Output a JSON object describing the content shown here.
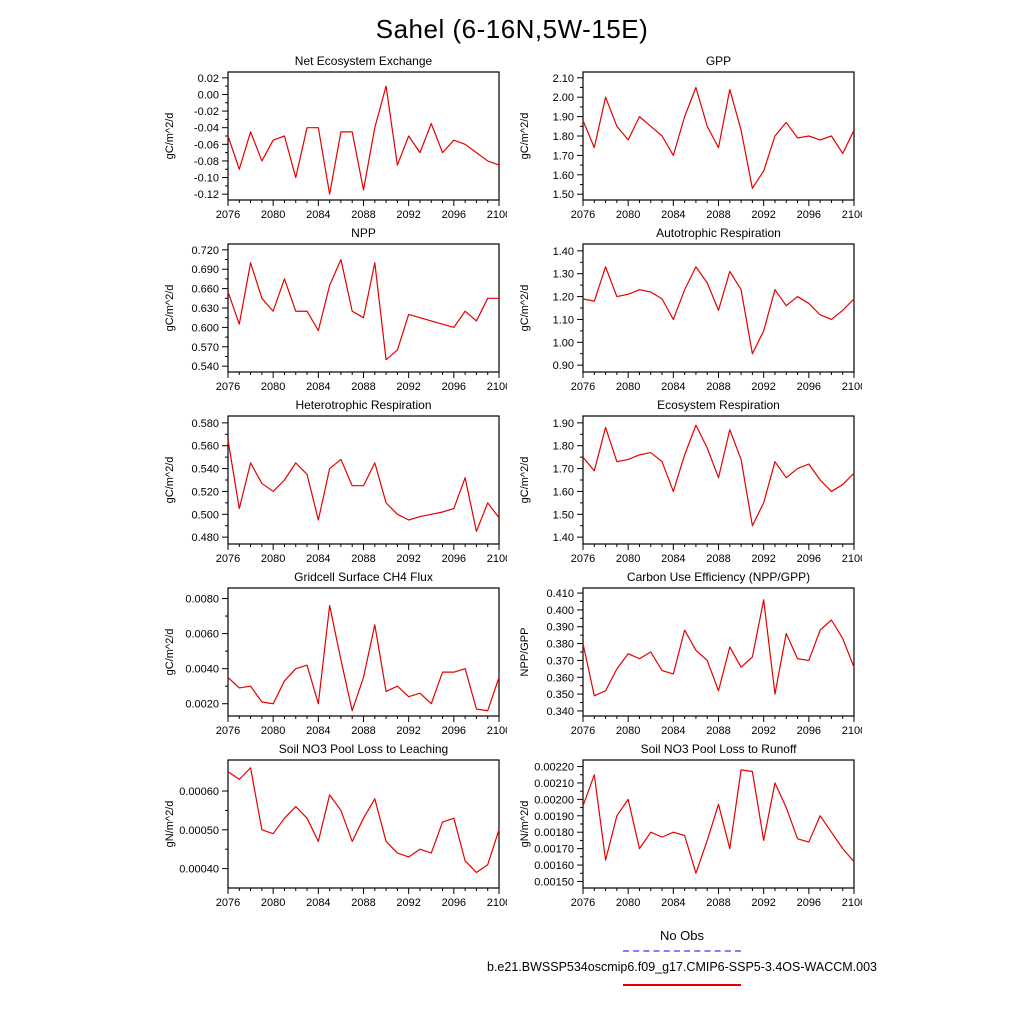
{
  "page": {
    "title": "Sahel (6-16N,5W-15E)"
  },
  "footer": {
    "no_obs_label": "No Obs",
    "case_label": "b.e21.BWSSP534oscmip6.f09_g17.CMIP6-SSP5-3.4OS-WACCM.003"
  },
  "colors": {
    "series_line": "#e50000",
    "obs_dashed_line": "#8080ff",
    "axis": "#000000"
  },
  "chart_data": [
    {
      "type": "line",
      "title": "Net Ecosystem Exchange",
      "ylabel": "gC/m^2/d",
      "x_range": [
        2076,
        2100
      ],
      "x_step": 1,
      "xticks": [
        2076,
        2080,
        2084,
        2088,
        2092,
        2096,
        2100
      ],
      "yticks": [
        -0.12,
        -0.1,
        -0.08,
        -0.06,
        -0.04,
        -0.02,
        0.0,
        0.02
      ],
      "ytick_decimals": 2,
      "ylim": [
        -0.127,
        0.027
      ],
      "values": [
        -0.05,
        -0.09,
        -0.045,
        -0.08,
        -0.055,
        -0.05,
        -0.1,
        -0.04,
        -0.04,
        -0.12,
        -0.045,
        -0.045,
        -0.115,
        -0.04,
        0.01,
        -0.085,
        -0.05,
        -0.07,
        -0.035,
        -0.07,
        -0.055,
        -0.06,
        -0.07,
        -0.08,
        -0.085
      ]
    },
    {
      "type": "line",
      "title": "GPP",
      "ylabel": "gC/m^2/d",
      "x_range": [
        2076,
        2100
      ],
      "x_step": 1,
      "xticks": [
        2076,
        2080,
        2084,
        2088,
        2092,
        2096,
        2100
      ],
      "yticks": [
        1.5,
        1.6,
        1.7,
        1.8,
        1.9,
        2.0,
        2.1
      ],
      "ytick_decimals": 2,
      "ylim": [
        1.47,
        2.13
      ],
      "values": [
        1.88,
        1.74,
        2.0,
        1.85,
        1.78,
        1.9,
        1.85,
        1.8,
        1.7,
        1.9,
        2.05,
        1.85,
        1.74,
        2.04,
        1.83,
        1.53,
        1.62,
        1.8,
        1.87,
        1.79,
        1.8,
        1.78,
        1.8,
        1.71,
        1.83
      ]
    },
    {
      "type": "line",
      "title": "NPP",
      "ylabel": "gC/m^2/d",
      "x_range": [
        2076,
        2100
      ],
      "x_step": 1,
      "xticks": [
        2076,
        2080,
        2084,
        2088,
        2092,
        2096,
        2100
      ],
      "yticks": [
        0.54,
        0.57,
        0.6,
        0.63,
        0.66,
        0.69,
        0.72
      ],
      "ytick_decimals": 3,
      "ylim": [
        0.531,
        0.729
      ],
      "values": [
        0.655,
        0.605,
        0.7,
        0.645,
        0.625,
        0.675,
        0.625,
        0.625,
        0.595,
        0.665,
        0.705,
        0.625,
        0.615,
        0.7,
        0.55,
        0.565,
        0.62,
        0.615,
        0.61,
        0.605,
        0.6,
        0.625,
        0.61,
        0.645,
        0.645
      ]
    },
    {
      "type": "line",
      "title": "Autotrophic Respiration",
      "ylabel": "gC/m^2/d",
      "x_range": [
        2076,
        2100
      ],
      "x_step": 1,
      "xticks": [
        2076,
        2080,
        2084,
        2088,
        2092,
        2096,
        2100
      ],
      "yticks": [
        0.9,
        1.0,
        1.1,
        1.2,
        1.3,
        1.4
      ],
      "ytick_decimals": 2,
      "ylim": [
        0.87,
        1.43
      ],
      "values": [
        1.19,
        1.18,
        1.33,
        1.2,
        1.21,
        1.23,
        1.22,
        1.19,
        1.1,
        1.23,
        1.33,
        1.26,
        1.14,
        1.31,
        1.23,
        0.95,
        1.05,
        1.23,
        1.16,
        1.2,
        1.17,
        1.12,
        1.1,
        1.14,
        1.19
      ]
    },
    {
      "type": "line",
      "title": "Heterotrophic Respiration",
      "ylabel": "gC/m^2/d",
      "x_range": [
        2076,
        2100
      ],
      "x_step": 1,
      "xticks": [
        2076,
        2080,
        2084,
        2088,
        2092,
        2096,
        2100
      ],
      "yticks": [
        0.48,
        0.5,
        0.52,
        0.54,
        0.56,
        0.58
      ],
      "ytick_decimals": 3,
      "ylim": [
        0.474,
        0.586
      ],
      "values": [
        0.565,
        0.505,
        0.545,
        0.527,
        0.52,
        0.53,
        0.545,
        0.535,
        0.495,
        0.54,
        0.548,
        0.525,
        0.525,
        0.545,
        0.51,
        0.5,
        0.495,
        0.498,
        0.5,
        0.502,
        0.505,
        0.532,
        0.485,
        0.51,
        0.497
      ]
    },
    {
      "type": "line",
      "title": "Ecosystem Respiration",
      "ylabel": "gC/m^2/d",
      "x_range": [
        2076,
        2100
      ],
      "x_step": 1,
      "xticks": [
        2076,
        2080,
        2084,
        2088,
        2092,
        2096,
        2100
      ],
      "yticks": [
        1.4,
        1.5,
        1.6,
        1.7,
        1.8,
        1.9
      ],
      "ytick_decimals": 2,
      "ylim": [
        1.37,
        1.93
      ],
      "values": [
        1.75,
        1.69,
        1.88,
        1.73,
        1.74,
        1.76,
        1.77,
        1.73,
        1.6,
        1.76,
        1.89,
        1.79,
        1.66,
        1.87,
        1.74,
        1.45,
        1.55,
        1.73,
        1.66,
        1.7,
        1.72,
        1.65,
        1.6,
        1.63,
        1.68
      ]
    },
    {
      "type": "line",
      "title": "Gridcell Surface CH4 Flux",
      "ylabel": "gC/m^2/d",
      "x_range": [
        2076,
        2100
      ],
      "x_step": 1,
      "xticks": [
        2076,
        2080,
        2084,
        2088,
        2092,
        2096,
        2100
      ],
      "yticks": [
        0.002,
        0.004,
        0.006,
        0.008
      ],
      "ytick_decimals": 4,
      "ylim": [
        0.0013,
        0.0086
      ],
      "values": [
        0.0035,
        0.0029,
        0.003,
        0.0021,
        0.002,
        0.0033,
        0.004,
        0.0042,
        0.002,
        0.0076,
        0.0045,
        0.0016,
        0.0035,
        0.0065,
        0.0027,
        0.003,
        0.0024,
        0.0026,
        0.002,
        0.0038,
        0.0038,
        0.004,
        0.0017,
        0.0016,
        0.0035
      ]
    },
    {
      "type": "line",
      "title": "Carbon Use Efficiency (NPP/GPP)",
      "ylabel": "NPP/GPP",
      "x_range": [
        2076,
        2100
      ],
      "x_step": 1,
      "xticks": [
        2076,
        2080,
        2084,
        2088,
        2092,
        2096,
        2100
      ],
      "yticks": [
        0.34,
        0.35,
        0.36,
        0.37,
        0.38,
        0.39,
        0.4,
        0.41
      ],
      "ytick_decimals": 3,
      "ylim": [
        0.337,
        0.413
      ],
      "values": [
        0.38,
        0.349,
        0.352,
        0.365,
        0.374,
        0.371,
        0.375,
        0.364,
        0.362,
        0.388,
        0.376,
        0.37,
        0.352,
        0.378,
        0.366,
        0.372,
        0.406,
        0.35,
        0.386,
        0.371,
        0.37,
        0.388,
        0.394,
        0.383,
        0.366
      ]
    },
    {
      "type": "line",
      "title": "Soil NO3 Pool Loss to Leaching",
      "ylabel": "gN/m^2/d",
      "x_range": [
        2076,
        2100
      ],
      "x_step": 1,
      "xticks": [
        2076,
        2080,
        2084,
        2088,
        2092,
        2096,
        2100
      ],
      "yticks": [
        0.0004,
        0.0005,
        0.0006
      ],
      "ytick_decimals": 5,
      "ylim": [
        0.00035,
        0.00068
      ],
      "values": [
        0.00065,
        0.00063,
        0.00066,
        0.0005,
        0.00049,
        0.00053,
        0.00056,
        0.00053,
        0.00047,
        0.00059,
        0.00055,
        0.00047,
        0.00053,
        0.00058,
        0.00047,
        0.00044,
        0.00043,
        0.00045,
        0.00044,
        0.00052,
        0.00053,
        0.00042,
        0.00039,
        0.00041,
        0.0005
      ]
    },
    {
      "type": "line",
      "title": "Soil NO3 Pool Loss to Runoff",
      "ylabel": "gN/m^2/d",
      "x_range": [
        2076,
        2100
      ],
      "x_step": 1,
      "xticks": [
        2076,
        2080,
        2084,
        2088,
        2092,
        2096,
        2100
      ],
      "yticks": [
        0.0015,
        0.0016,
        0.0017,
        0.0018,
        0.0019,
        0.002,
        0.0021,
        0.0022
      ],
      "ytick_decimals": 5,
      "ylim": [
        0.00146,
        0.00224
      ],
      "values": [
        0.00196,
        0.00215,
        0.00163,
        0.0019,
        0.002,
        0.0017,
        0.0018,
        0.00177,
        0.0018,
        0.00178,
        0.00155,
        0.00175,
        0.00197,
        0.0017,
        0.00218,
        0.00217,
        0.00175,
        0.0021,
        0.00195,
        0.00176,
        0.00174,
        0.0019,
        0.0018,
        0.0017,
        0.00162
      ]
    }
  ]
}
